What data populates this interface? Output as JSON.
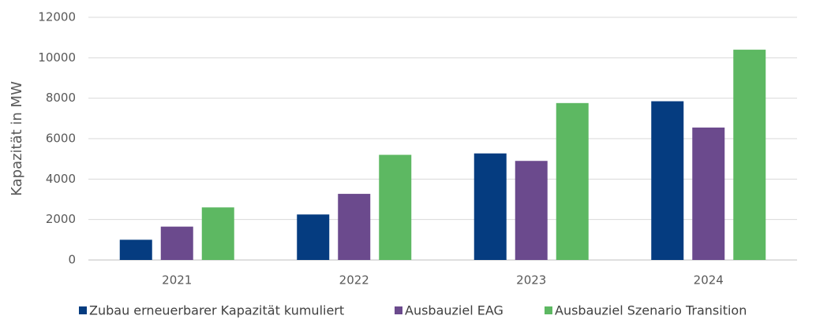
{
  "chart_data": {
    "type": "bar",
    "y_label": "Kapazität in MW",
    "categories": [
      "2021",
      "2022",
      "2023",
      "2024"
    ],
    "series": [
      {
        "name": "Zubau erneuerbarer Kapazität kumuliert",
        "color": "#053c80",
        "values": [
          1000,
          2250,
          5270,
          7850
        ]
      },
      {
        "name": "Ausbauziel EAG",
        "color": "#6b4a8d",
        "values": [
          1650,
          3270,
          4900,
          6550
        ]
      },
      {
        "name": "Ausbauziel Szenario Transition",
        "color": "#5db862",
        "values": [
          2600,
          5200,
          7760,
          10400
        ]
      }
    ],
    "ylim": [
      0,
      12000
    ],
    "yticks": [
      0,
      2000,
      4000,
      6000,
      8000,
      10000,
      12000
    ],
    "grid": true,
    "legend": "bottom"
  }
}
